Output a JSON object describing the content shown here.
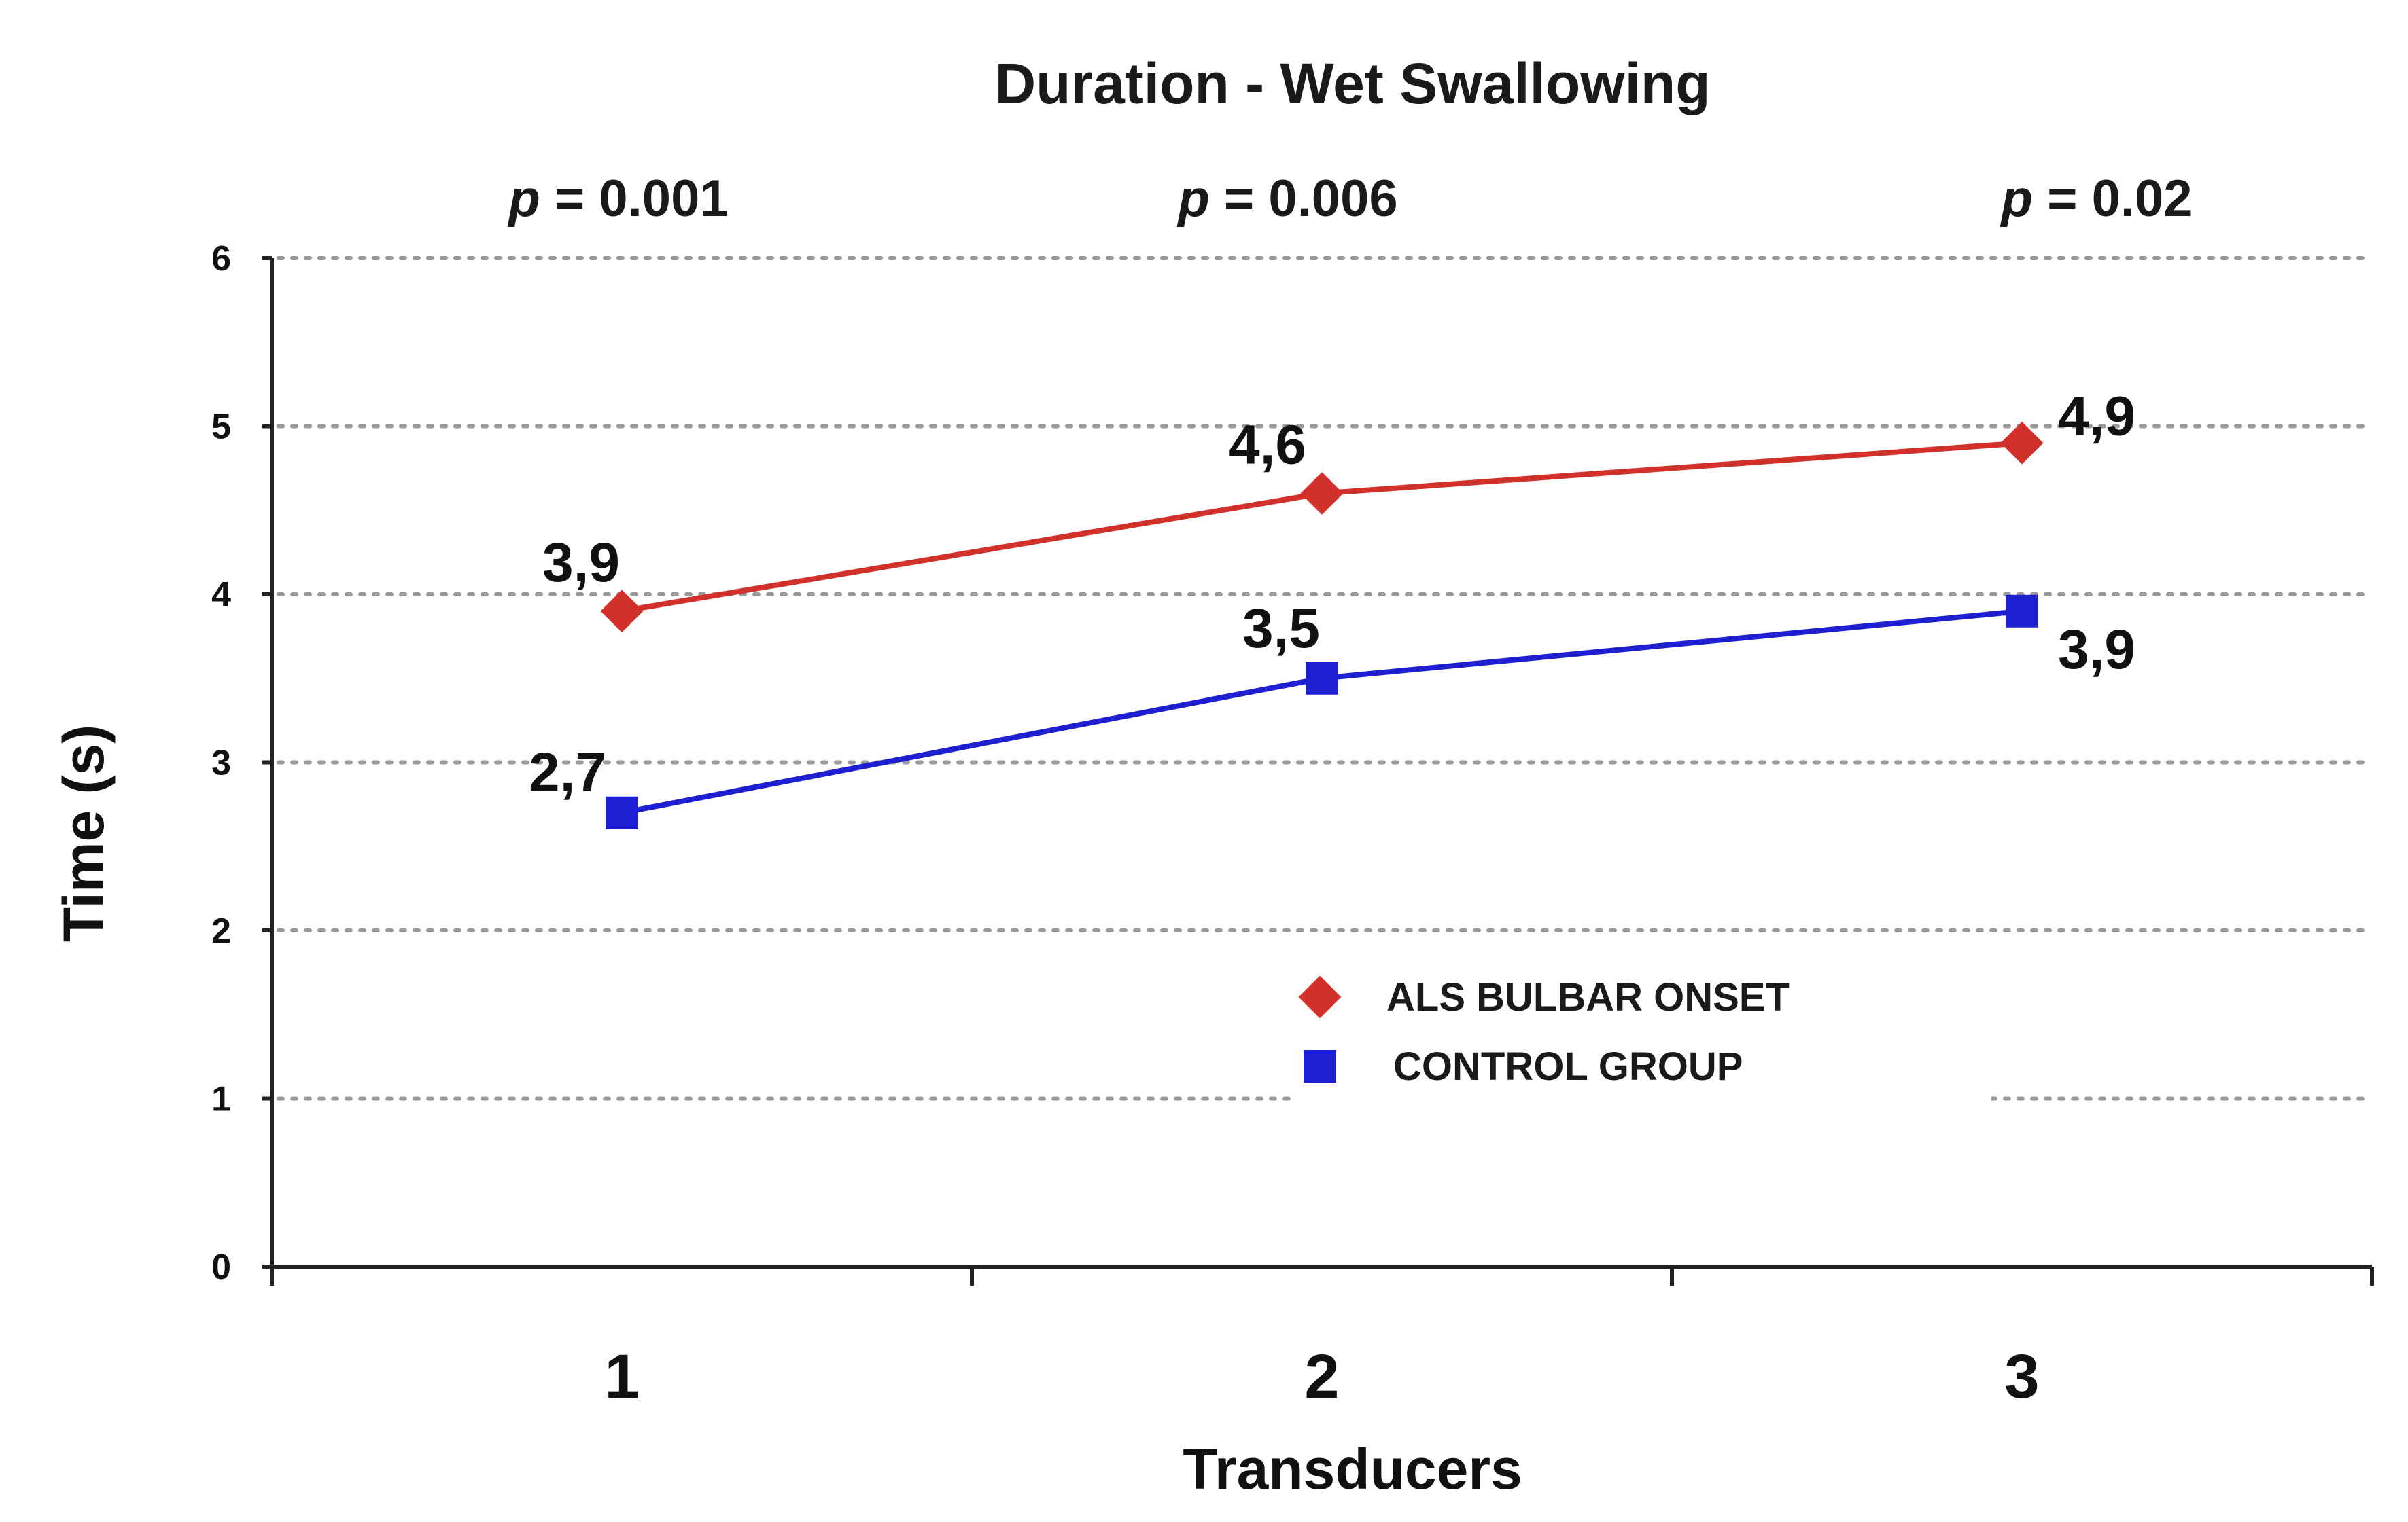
{
  "chart_data": {
    "type": "line",
    "title": "Duration - Wet Swallowing",
    "xlabel": "Transducers",
    "ylabel": "Time (s)",
    "categories": [
      "1",
      "2",
      "3"
    ],
    "ylim": [
      0,
      6
    ],
    "yticks": [
      "0",
      "1",
      "2",
      "3",
      "4",
      "5",
      "6"
    ],
    "grid": true,
    "legend_position": "center",
    "p_values": [
      {
        "prefix": "p",
        "text": " = 0.001"
      },
      {
        "prefix": "p",
        "text": " = 0.006"
      },
      {
        "prefix": "p",
        "text": " = 0.02"
      }
    ],
    "series": [
      {
        "name": "ALS BULBAR ONSET",
        "marker": "diamond",
        "color": "#d2302a",
        "values": [
          3.9,
          4.6,
          4.9
        ],
        "labels": [
          "3,9",
          "4,6",
          "4,9"
        ]
      },
      {
        "name": "CONTROL GROUP",
        "marker": "square",
        "color": "#1f1fd2",
        "values": [
          2.7,
          3.5,
          3.9
        ],
        "labels": [
          "2,7",
          "3,5",
          "3,9"
        ]
      }
    ]
  }
}
